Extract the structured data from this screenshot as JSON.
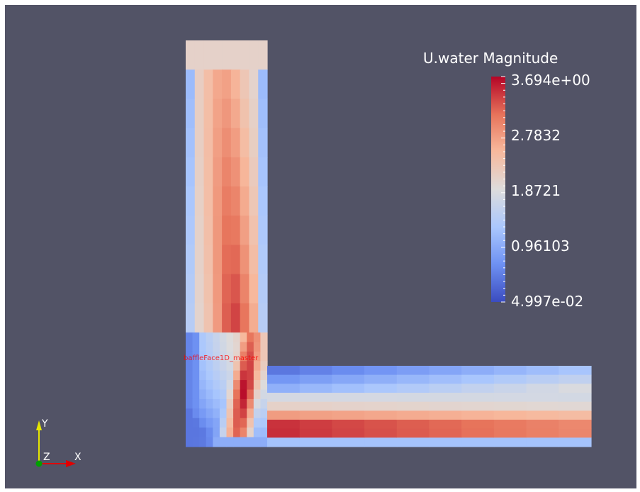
{
  "legend": {
    "title": "U.water Magnitude",
    "ticks": [
      {
        "label": "3.694e+00",
        "value": 3.694
      },
      {
        "label": "2.7832",
        "value": 2.7832
      },
      {
        "label": "1.8721",
        "value": 1.8721
      },
      {
        "label": "0.96103",
        "value": 0.96103
      },
      {
        "label": "4.997e-02",
        "value": 0.04997
      }
    ],
    "range": [
      0.04997,
      3.694
    ],
    "colormap": [
      "#3b4cc0",
      "#6f92f3",
      "#aac7fd",
      "#dddcdc",
      "#f7b89c",
      "#e7745b",
      "#b40426"
    ]
  },
  "annotations": {
    "baffle": "baffleFace1D_master"
  },
  "axes": {
    "y": "Y",
    "z": "Z",
    "x": "X"
  },
  "colors": {
    "background": "#525366",
    "y_axis": "#e6e600",
    "x_axis": "#e00000",
    "z_axis": "#00a000"
  }
}
